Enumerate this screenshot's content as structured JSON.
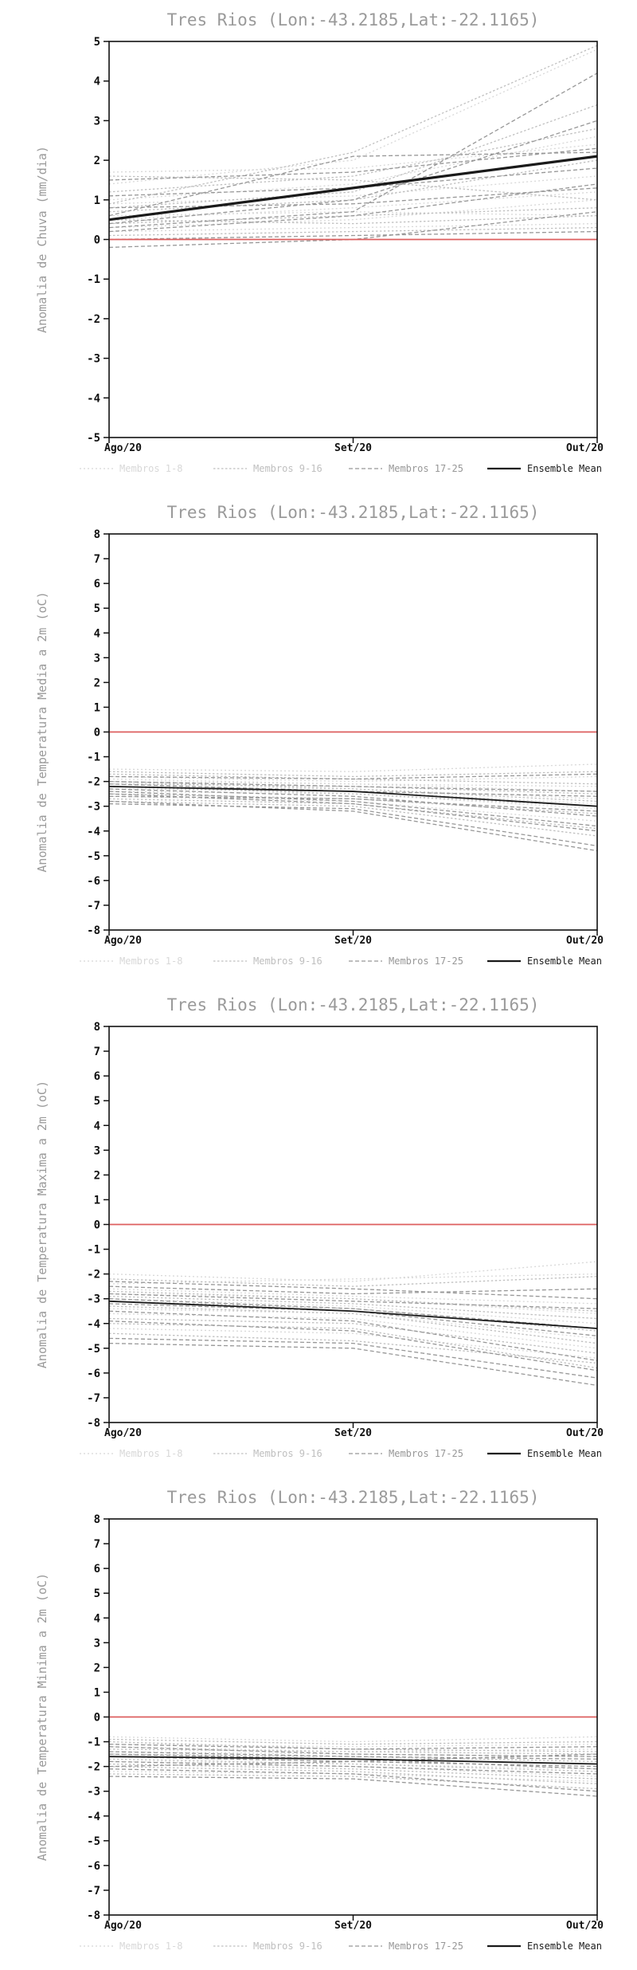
{
  "colors": {
    "background": "#ffffff",
    "title_gray": "#9a9a9a",
    "axis_black": "#111111",
    "zero_line_red": "#dd5f5f",
    "members_1_8": "#d8d8d8",
    "members_9_16": "#bfbfbf",
    "members_17_25": "#979797",
    "ensemble_mean": "#1a1a1a"
  },
  "chart_data": [
    {
      "type": "line",
      "title": "Tres Rios (Lon:-43.2185,Lat:-22.1165)",
      "ylabel": "Anomalia de Chuva (mm/dia)",
      "ylim": [
        -5,
        5
      ],
      "ytick_step": 1,
      "x_labels": [
        "Ago/20",
        "Set/20",
        "Out/20"
      ],
      "grid": false,
      "legend_position": "bottom",
      "zero_line": {
        "value": 0,
        "color": "#dd5f5f"
      },
      "groups": [
        {
          "name": "Membros 1-8",
          "color": "#d8d8d8",
          "members": [
            [
              0.5,
              0.8,
              1.2
            ],
            [
              1.7,
              1.8,
              2.4
            ],
            [
              0.9,
              1.1,
              1.6
            ],
            [
              0.2,
              0.3,
              0.4
            ],
            [
              1.4,
              2.0,
              4.8
            ],
            [
              0.6,
              0.7,
              0.6
            ],
            [
              1.0,
              1.4,
              2.6
            ],
            [
              0.3,
              0.5,
              1.0
            ]
          ]
        },
        {
          "name": "Membros 9-16",
          "color": "#bfbfbf",
          "members": [
            [
              1.6,
              1.5,
              1.0
            ],
            [
              0.8,
              1.2,
              3.4
            ],
            [
              0.4,
              0.6,
              0.8
            ],
            [
              1.2,
              1.6,
              2.8
            ],
            [
              0.1,
              0.2,
              0.3
            ],
            [
              0.9,
              2.2,
              4.9
            ],
            [
              0.5,
              0.4,
              0.6
            ],
            [
              0.7,
              1.0,
              2.0
            ]
          ]
        },
        {
          "name": "Membros 17-25",
          "color": "#979797",
          "members": [
            [
              0.3,
              0.7,
              4.2
            ],
            [
              1.1,
              1.3,
              1.8
            ],
            [
              0.0,
              0.1,
              0.2
            ],
            [
              0.6,
              2.1,
              2.2
            ],
            [
              0.2,
              0.6,
              1.4
            ],
            [
              1.5,
              1.7,
              2.3
            ],
            [
              -0.2,
              0.0,
              0.7
            ],
            [
              0.8,
              0.9,
              1.3
            ],
            [
              0.4,
              1.0,
              3.0
            ]
          ]
        }
      ],
      "ensemble_mean": {
        "name": "Ensemble Mean",
        "color": "#1a1a1a",
        "values": [
          0.5,
          1.3,
          2.1
        ]
      }
    },
    {
      "type": "line",
      "title": "Tres Rios (Lon:-43.2185,Lat:-22.1165)",
      "ylabel": "Anomalia de Temperatura Media a 2m (oC)",
      "ylim": [
        -8,
        8
      ],
      "ytick_step": 1,
      "x_labels": [
        "Ago/20",
        "Set/20",
        "Out/20"
      ],
      "grid": false,
      "legend_position": "bottom",
      "zero_line": {
        "value": 0,
        "color": "#dd5f5f"
      },
      "groups": [
        {
          "name": "Membros 1-8",
          "color": "#d8d8d8",
          "members": [
            [
              -1.5,
              -1.6,
              -1.3
            ],
            [
              -2.0,
              -2.1,
              -2.4
            ],
            [
              -2.4,
              -2.5,
              -3.1
            ],
            [
              -1.8,
              -2.0,
              -1.8
            ],
            [
              -2.2,
              -2.3,
              -2.7
            ],
            [
              -2.6,
              -2.8,
              -3.6
            ],
            [
              -1.9,
              -2.1,
              -2.2
            ],
            [
              -2.3,
              -2.4,
              -2.9
            ]
          ]
        },
        {
          "name": "Membros 9-16",
          "color": "#bfbfbf",
          "members": [
            [
              -1.6,
              -1.8,
              -1.6
            ],
            [
              -2.1,
              -2.2,
              -2.5
            ],
            [
              -2.5,
              -2.7,
              -3.3
            ],
            [
              -1.7,
              -1.9,
              -2.1
            ],
            [
              -2.7,
              -2.9,
              -3.9
            ],
            [
              -2.0,
              -2.3,
              -2.8
            ],
            [
              -2.8,
              -3.0,
              -4.2
            ],
            [
              -2.2,
              -2.5,
              -3.0
            ]
          ]
        },
        {
          "name": "Membros 17-25",
          "color": "#979797",
          "members": [
            [
              -1.8,
              -1.9,
              -1.7
            ],
            [
              -2.3,
              -2.6,
              -3.4
            ],
            [
              -2.9,
              -3.1,
              -4.6
            ],
            [
              -2.1,
              -2.4,
              -2.6
            ],
            [
              -2.6,
              -2.7,
              -3.2
            ],
            [
              -2.4,
              -2.8,
              -3.8
            ],
            [
              -2.8,
              -3.2,
              -4.8
            ],
            [
              -2.0,
              -2.2,
              -2.4
            ],
            [
              -2.5,
              -2.9,
              -4.0
            ]
          ]
        }
      ],
      "ensemble_mean": {
        "name": "Ensemble Mean",
        "color": "#1a1a1a",
        "values": [
          -2.2,
          -2.4,
          -3.0
        ]
      }
    },
    {
      "type": "line",
      "title": "Tres Rios (Lon:-43.2185,Lat:-22.1165)",
      "ylabel": "Anomalia de Temperatura Maxima a 2m (oC)",
      "ylim": [
        -8,
        8
      ],
      "ytick_step": 1,
      "x_labels": [
        "Ago/20",
        "Set/20",
        "Out/20"
      ],
      "grid": false,
      "legend_position": "bottom",
      "zero_line": {
        "value": 0,
        "color": "#dd5f5f"
      },
      "groups": [
        {
          "name": "Membros 1-8",
          "color": "#d8d8d8",
          "members": [
            [
              -2.0,
              -2.3,
              -1.5
            ],
            [
              -2.8,
              -3.0,
              -3.6
            ],
            [
              -3.4,
              -3.6,
              -4.6
            ],
            [
              -2.4,
              -2.2,
              -2.0
            ],
            [
              -3.0,
              -3.3,
              -4.0
            ],
            [
              -4.2,
              -4.4,
              -5.4
            ],
            [
              -2.6,
              -2.9,
              -3.2
            ],
            [
              -3.6,
              -3.8,
              -5.0
            ]
          ]
        },
        {
          "name": "Membros 9-16",
          "color": "#bfbfbf",
          "members": [
            [
              -2.2,
              -2.5,
              -2.1
            ],
            [
              -3.1,
              -3.4,
              -4.3
            ],
            [
              -4.0,
              -4.2,
              -5.8
            ],
            [
              -2.7,
              -3.0,
              -3.5
            ],
            [
              -3.3,
              -3.6,
              -4.8
            ],
            [
              -4.4,
              -4.7,
              -5.6
            ],
            [
              -2.9,
              -3.2,
              -3.8
            ],
            [
              -3.8,
              -4.0,
              -5.2
            ]
          ]
        },
        {
          "name": "Membros 17-25",
          "color": "#979797",
          "members": [
            [
              -2.3,
              -2.6,
              -3.0
            ],
            [
              -3.2,
              -3.5,
              -4.5
            ],
            [
              -4.6,
              -4.8,
              -6.2
            ],
            [
              -2.5,
              -2.8,
              -2.6
            ],
            [
              -3.5,
              -3.9,
              -5.5
            ],
            [
              -4.8,
              -5.0,
              -6.5
            ],
            [
              -3.0,
              -3.4,
              -4.2
            ],
            [
              -3.9,
              -4.3,
              -5.9
            ],
            [
              -2.8,
              -3.1,
              -3.4
            ]
          ]
        }
      ],
      "ensemble_mean": {
        "name": "Ensemble Mean",
        "color": "#1a1a1a",
        "values": [
          -3.1,
          -3.5,
          -4.2
        ]
      }
    },
    {
      "type": "line",
      "title": "Tres Rios (Lon:-43.2185,Lat:-22.1165)",
      "ylabel": "Anomalia de Temperatura Minima a 2m (oC)",
      "ylim": [
        -8,
        8
      ],
      "ytick_step": 1,
      "x_labels": [
        "Ago/20",
        "Set/20",
        "Out/20"
      ],
      "grid": false,
      "legend_position": "bottom",
      "zero_line": {
        "value": 0,
        "color": "#dd5f5f"
      },
      "groups": [
        {
          "name": "Membros 1-8",
          "color": "#d8d8d8",
          "members": [
            [
              -0.8,
              -1.0,
              -0.8
            ],
            [
              -1.4,
              -1.5,
              -1.6
            ],
            [
              -1.9,
              -2.0,
              -2.4
            ],
            [
              -1.1,
              -1.2,
              -1.1
            ],
            [
              -1.6,
              -1.7,
              -1.9
            ],
            [
              -2.2,
              -2.3,
              -2.6
            ],
            [
              -1.2,
              -1.4,
              -1.3
            ],
            [
              -1.8,
              -1.9,
              -2.1
            ]
          ]
        },
        {
          "name": "Membros 9-16",
          "color": "#bfbfbf",
          "members": [
            [
              -0.9,
              -1.1,
              -1.0
            ],
            [
              -1.5,
              -1.6,
              -1.8
            ],
            [
              -2.0,
              -2.2,
              -2.7
            ],
            [
              -1.3,
              -1.4,
              -1.5
            ],
            [
              -1.7,
              -1.9,
              -2.2
            ],
            [
              -2.3,
              -2.4,
              -2.9
            ],
            [
              -1.0,
              -1.3,
              -1.4
            ],
            [
              -1.9,
              -2.1,
              -2.5
            ]
          ]
        },
        {
          "name": "Membros 17-25",
          "color": "#979797",
          "members": [
            [
              -1.1,
              -1.3,
              -1.2
            ],
            [
              -1.6,
              -1.8,
              -2.0
            ],
            [
              -2.1,
              -2.3,
              -3.0
            ],
            [
              -1.4,
              -1.6,
              -1.7
            ],
            [
              -1.8,
              -2.0,
              -2.3
            ],
            [
              -2.4,
              -2.5,
              -3.2
            ],
            [
              -1.2,
              -1.5,
              -1.6
            ],
            [
              -2.0,
              -1.8,
              -1.5
            ],
            [
              -1.5,
              -1.7,
              -2.1
            ]
          ]
        }
      ],
      "ensemble_mean": {
        "name": "Ensemble Mean",
        "color": "#1a1a1a",
        "values": [
          -1.6,
          -1.7,
          -1.9
        ]
      }
    }
  ]
}
